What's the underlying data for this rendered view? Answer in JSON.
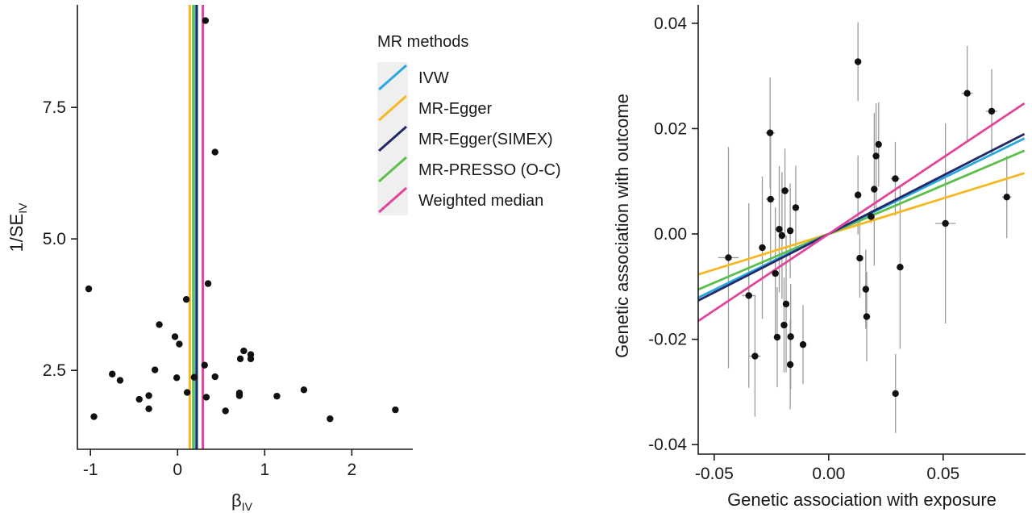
{
  "chart_data": [
    {
      "type": "scatter",
      "xlabel": "β",
      "xlabel_sub": "IV",
      "ylabel": "1/SE",
      "ylabel_sub": "IV",
      "xlim": [
        -1.15,
        2.7
      ],
      "ylim": [
        1.0,
        9.45
      ],
      "x_ticks": [
        -1,
        0,
        1,
        2
      ],
      "x_tick_labels": [
        "-1",
        "0",
        "1",
        "2"
      ],
      "y_ticks": [
        2.5,
        5.0,
        7.5
      ],
      "y_tick_labels": [
        "2.5",
        "5.0",
        "7.5"
      ],
      "grid": false,
      "legend": {
        "title": "MR methods",
        "placement": "top-right",
        "entries": [
          {
            "name": "IVW",
            "color": "#2aa7df"
          },
          {
            "name": "MR-Egger",
            "color": "#f4b822"
          },
          {
            "name": "MR-Egger(SIMEX)",
            "color": "#232a68"
          },
          {
            "name": "MR-PRESSO (O-C)",
            "color": "#5bbf4a"
          },
          {
            "name": "Weighted median",
            "color": "#e0459a"
          }
        ]
      },
      "vertical_lines": [
        {
          "method": "MR-Egger",
          "x": 0.14,
          "color": "#f4b822"
        },
        {
          "method": "MR-PRESSO (O-C)",
          "x": 0.18,
          "color": "#5bbf4a"
        },
        {
          "method": "IVW",
          "x": 0.21,
          "color": "#2aa7df"
        },
        {
          "method": "MR-Egger(SIMEX)",
          "x": 0.22,
          "color": "#232a68"
        },
        {
          "method": "Weighted median",
          "x": 0.29,
          "color": "#e0459a"
        }
      ],
      "points": [
        {
          "x": 0.32,
          "y": 9.15
        },
        {
          "x": 0.43,
          "y": 6.65
        },
        {
          "x": 0.35,
          "y": 4.15
        },
        {
          "x": -1.02,
          "y": 4.05
        },
        {
          "x": 0.1,
          "y": 3.85
        },
        {
          "x": -0.21,
          "y": 3.37
        },
        {
          "x": -0.03,
          "y": 3.14
        },
        {
          "x": 0.02,
          "y": 3.0
        },
        {
          "x": 0.76,
          "y": 2.87
        },
        {
          "x": 0.84,
          "y": 2.8
        },
        {
          "x": 0.72,
          "y": 2.72
        },
        {
          "x": 0.84,
          "y": 2.72
        },
        {
          "x": 0.31,
          "y": 2.6
        },
        {
          "x": -0.26,
          "y": 2.51
        },
        {
          "x": -0.75,
          "y": 2.43
        },
        {
          "x": 0.43,
          "y": 2.38
        },
        {
          "x": 0.19,
          "y": 2.37
        },
        {
          "x": -0.01,
          "y": 2.36
        },
        {
          "x": -0.66,
          "y": 2.31
        },
        {
          "x": 1.45,
          "y": 2.13
        },
        {
          "x": 0.11,
          "y": 2.08
        },
        {
          "x": 0.71,
          "y": 2.07
        },
        {
          "x": 0.71,
          "y": 2.02
        },
        {
          "x": -0.33,
          "y": 2.02
        },
        {
          "x": 1.14,
          "y": 2.01
        },
        {
          "x": 0.33,
          "y": 1.99
        },
        {
          "x": -0.44,
          "y": 1.95
        },
        {
          "x": -0.33,
          "y": 1.77
        },
        {
          "x": 2.5,
          "y": 1.75
        },
        {
          "x": 0.55,
          "y": 1.73
        },
        {
          "x": -0.96,
          "y": 1.62
        },
        {
          "x": 1.75,
          "y": 1.58
        }
      ]
    },
    {
      "type": "scatter",
      "xlabel": "Genetic association with exposure",
      "ylabel": "Genetic association with outcome",
      "xlim": [
        -0.057,
        0.086
      ],
      "ylim": [
        -0.0418,
        0.0435
      ],
      "x_ticks": [
        -0.05,
        0.0,
        0.05
      ],
      "x_tick_labels": [
        "-0.05",
        "0.00",
        "0.05"
      ],
      "y_ticks": [
        -0.04,
        -0.02,
        0.0,
        0.02,
        0.04
      ],
      "y_tick_labels": [
        "-0.04",
        "-0.02",
        "0.00",
        "0.02",
        "0.04"
      ],
      "grid": false,
      "fit_lines": [
        {
          "method": "MR-Egger",
          "slope": 0.135,
          "intercept": 0.0,
          "color": "#f4b822"
        },
        {
          "method": "MR-PRESSO (O-C)",
          "slope": 0.185,
          "intercept": 0.0,
          "color": "#5bbf4a"
        },
        {
          "method": "IVW",
          "slope": 0.212,
          "intercept": 0.0,
          "color": "#2aa7df"
        },
        {
          "method": "MR-Egger(SIMEX)",
          "slope": 0.222,
          "intercept": 0.0,
          "color": "#232a68"
        },
        {
          "method": "Weighted median",
          "slope": 0.29,
          "intercept": 0.0,
          "color": "#e0459a"
        }
      ],
      "points": [
        {
          "x": 0.0128,
          "y": 0.0327,
          "xerr": 0.0008,
          "yerr": 0.0075
        },
        {
          "x": 0.0605,
          "y": 0.0267,
          "xerr": 0.0025,
          "yerr": 0.009
        },
        {
          "x": 0.0712,
          "y": 0.0233,
          "xerr": 0.0025,
          "yerr": 0.008
        },
        {
          "x": -0.0256,
          "y": 0.0192,
          "xerr": 0.002,
          "yerr": 0.0105
        },
        {
          "x": 0.0218,
          "y": 0.017,
          "xerr": 0.0005,
          "yerr": 0.008
        },
        {
          "x": 0.0207,
          "y": 0.0148,
          "xerr": 0.0008,
          "yerr": 0.01
        },
        {
          "x": 0.0291,
          "y": 0.0105,
          "xerr": 0.002,
          "yerr": 0.007
        },
        {
          "x": 0.0199,
          "y": 0.0085,
          "xerr": 0.0006,
          "yerr": 0.0145
        },
        {
          "x": -0.0191,
          "y": 0.0082,
          "xerr": 0.0018,
          "yerr": 0.008
        },
        {
          "x": 0.0128,
          "y": 0.0074,
          "xerr": 0.0008,
          "yerr": 0.0075
        },
        {
          "x": 0.0778,
          "y": 0.007,
          "xerr": 0.002,
          "yerr": 0.0078
        },
        {
          "x": -0.0254,
          "y": 0.0066,
          "xerr": 0.002,
          "yerr": 0.012
        },
        {
          "x": -0.0144,
          "y": 0.005,
          "xerr": 0.001,
          "yerr": 0.008
        },
        {
          "x": 0.0185,
          "y": 0.0033,
          "xerr": 0.0015,
          "yerr": 0.0012
        },
        {
          "x": 0.051,
          "y": 0.002,
          "xerr": 0.0045,
          "yerr": 0.019
        },
        {
          "x": -0.0216,
          "y": 0.0009,
          "xerr": 0.001,
          "yerr": 0.012
        },
        {
          "x": -0.0168,
          "y": 0.0006,
          "xerr": 0.001,
          "yerr": 0.009
        },
        {
          "x": -0.0204,
          "y": -0.0003,
          "xerr": 0.001,
          "yerr": 0.012
        },
        {
          "x": -0.029,
          "y": -0.0026,
          "xerr": 0.001,
          "yerr": 0.0135
        },
        {
          "x": -0.0438,
          "y": -0.0045,
          "xerr": 0.0045,
          "yerr": 0.021
        },
        {
          "x": 0.0136,
          "y": -0.0046,
          "xerr": 0.0006,
          "yerr": 0.0075
        },
        {
          "x": 0.0312,
          "y": -0.0063,
          "xerr": 0.0015,
          "yerr": 0.0155
        },
        {
          "x": -0.0233,
          "y": -0.0075,
          "xerr": 0.0008,
          "yerr": 0.0125
        },
        {
          "x": 0.0162,
          "y": -0.0105,
          "xerr": 0.0008,
          "yerr": 0.0075
        },
        {
          "x": -0.0349,
          "y": -0.0117,
          "xerr": 0.003,
          "yerr": 0.0175
        },
        {
          "x": -0.0186,
          "y": -0.0133,
          "xerr": 0.001,
          "yerr": 0.013
        },
        {
          "x": 0.0166,
          "y": -0.0157,
          "xerr": 0.0015,
          "yerr": 0.0085
        },
        {
          "x": -0.0195,
          "y": -0.0173,
          "xerr": 0.0008,
          "yerr": 0.009
        },
        {
          "x": -0.0225,
          "y": -0.0196,
          "xerr": 0.0015,
          "yerr": 0.0095
        },
        {
          "x": -0.0166,
          "y": -0.0195,
          "xerr": 0.0008,
          "yerr": 0.01
        },
        {
          "x": -0.0112,
          "y": -0.021,
          "xerr": 0.001,
          "yerr": 0.0075
        },
        {
          "x": -0.0322,
          "y": -0.0232,
          "xerr": 0.0025,
          "yerr": 0.0115
        },
        {
          "x": -0.0168,
          "y": -0.0248,
          "xerr": 0.0008,
          "yerr": 0.0085
        },
        {
          "x": 0.0292,
          "y": -0.0303,
          "xerr": 0.0005,
          "yerr": 0.0075
        }
      ]
    }
  ]
}
